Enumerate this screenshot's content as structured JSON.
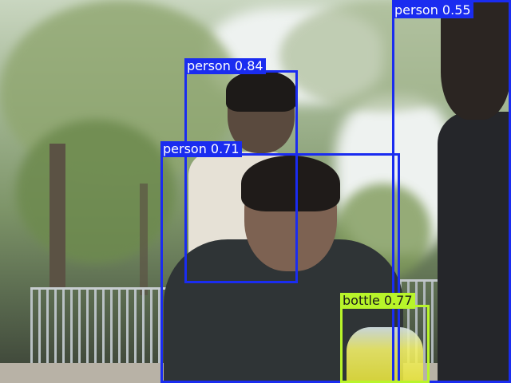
{
  "image": {
    "description_free": true,
    "colors": {
      "person_box": "#1a2cf0",
      "bottle_box": "#b8f52a",
      "person_label_text": "#ffffff",
      "bottle_label_text": "#1a1a1a"
    }
  },
  "detections": [
    {
      "label": "person 0.55",
      "class": "person",
      "score": 0.55
    },
    {
      "label": "person 0.84",
      "class": "person",
      "score": 0.84
    },
    {
      "label": "person 0.71",
      "class": "person",
      "score": 0.71
    },
    {
      "label": "bottle 0.77",
      "class": "bottle",
      "score": 0.77
    }
  ]
}
